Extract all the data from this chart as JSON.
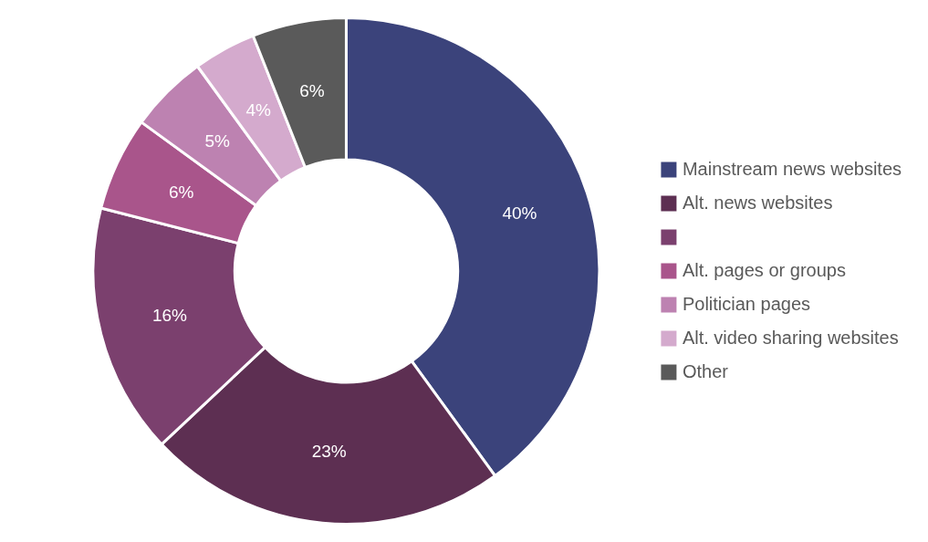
{
  "chart_data": {
    "type": "donut",
    "categories": [
      "Mainstream news websites",
      "Alt. news websites",
      null,
      "Alt. pages or groups",
      "Politician pages",
      "Alt. video sharing websites",
      "Other"
    ],
    "values": [
      40,
      23,
      16,
      6,
      5,
      4,
      6
    ],
    "value_labels": [
      "40%",
      "23%",
      "16%",
      "6%",
      "5%",
      "4%",
      "6%"
    ],
    "colors": [
      "#3b437b",
      "#5d2f52",
      "#7b406e",
      "#a9558b",
      "#bd82b1",
      "#d4aacd",
      "#5a5a5a"
    ],
    "legend": "right"
  }
}
